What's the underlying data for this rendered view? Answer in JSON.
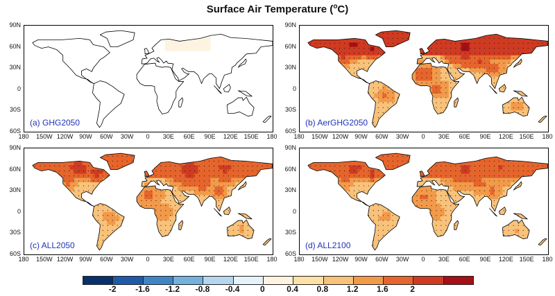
{
  "title": "Surface Air Temperature (",
  "title_sup": "o",
  "title_end": "C)",
  "lat_labels": [
    "90N",
    "60N",
    "30N",
    "0",
    "30S",
    "60S"
  ],
  "lon_labels": [
    "180",
    "150W",
    "120W",
    "90W",
    "60W",
    "30W",
    "0",
    "30E",
    "60E",
    "90E",
    "120E",
    "150E",
    "180"
  ],
  "panels": [
    {
      "label": "(a) GHG2050",
      "intensity": 0.05
    },
    {
      "label": "(b) AerGHG2050",
      "intensity": 1.0
    },
    {
      "label": "(c) ALL2050",
      "intensity": 0.9
    },
    {
      "label": "(d) ALL2100",
      "intensity": 0.85
    }
  ],
  "colorbar": {
    "colors": [
      "#08306b",
      "#1e5aa8",
      "#3f85c6",
      "#74b1dc",
      "#b5d6ec",
      "#e6f2f9",
      "#fdf3e0",
      "#fde0a6",
      "#f9c27a",
      "#f29a4a",
      "#e6652c",
      "#cf3b22",
      "#a50f15"
    ],
    "labels": [
      "-2",
      "-1.6",
      "-1.2",
      "-0.8",
      "-0.4",
      "0",
      "0.4",
      "0.8",
      "1.2",
      "1.6",
      "2"
    ]
  },
  "units": "Surface Air Temperature (oC)"
}
